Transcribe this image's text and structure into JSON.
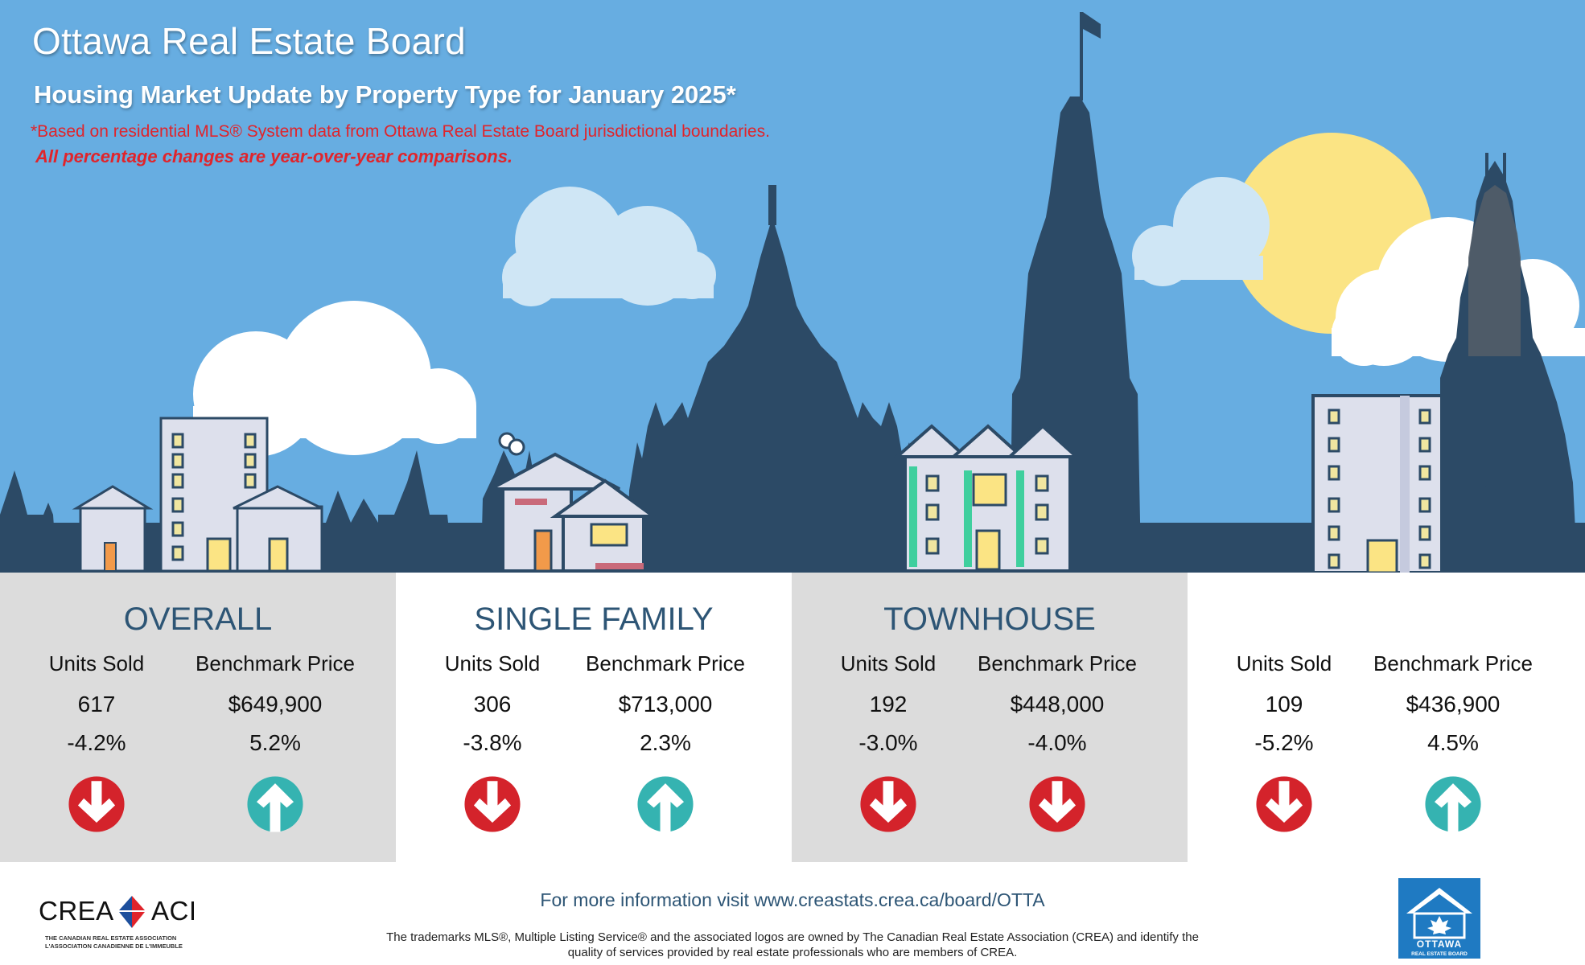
{
  "header": {
    "title": "Ottawa Real Estate Board",
    "subtitle": "Housing Market Update by Property Type for January 2025*",
    "note": "*Based on residential MLS® System data from Ottawa Real Estate Board jurisdictional boundaries.",
    "note2": "All percentage changes are year-over-year comparisons."
  },
  "labels": {
    "units_sold": "Units Sold",
    "benchmark_price": "Benchmark Price"
  },
  "panels": [
    {
      "title": "OVERALL",
      "units": "617",
      "units_change": "-4.2%",
      "units_dir": "down",
      "price": "$649,900",
      "price_change": "5.2%",
      "price_dir": "up"
    },
    {
      "title": "SINGLE FAMILY",
      "units": "306",
      "units_change": "-3.8%",
      "units_dir": "down",
      "price": "$713,000",
      "price_change": "2.3%",
      "price_dir": "up"
    },
    {
      "title": "TOWNHOUSE",
      "units": "192",
      "units_change": "-3.0%",
      "units_dir": "down",
      "price": "$448,000",
      "price_change": "-4.0%",
      "price_dir": "down"
    },
    {
      "title": "",
      "units": "109",
      "units_change": "-5.2%",
      "units_dir": "down",
      "price": "$436,900",
      "price_change": "4.5%",
      "price_dir": "up"
    }
  ],
  "footer": {
    "link_text": "For more information visit www.creastats.crea.ca/board/OTTA",
    "legal_line1": "The trademarks MLS®, Multiple Listing Service® and the associated logos are owned by The Canadian Real Estate Association (CREA) and identify the",
    "legal_line2": "quality of services provided by real estate professionals who are members of CREA.",
    "crea_logo": {
      "left": "CREA",
      "right": "ACI",
      "tagline1": "THE CANADIAN REAL ESTATE ASSOCIATION",
      "tagline2": "L'ASSOCIATION CANADIENNE DE L'IMMEUBLE"
    },
    "ottawa_logo": {
      "name": "OTTAWA",
      "sub": "REAL ESTATE BOARD"
    }
  },
  "colors": {
    "sky": "#67ade1",
    "silhouette": "#2c4a66",
    "panel_grey": "#dcdcdc",
    "down_arrow": "#d4232b",
    "up_arrow": "#35b3b1",
    "title_blue": "#2d5575",
    "note_red": "#e0242b",
    "sun": "#fbe484",
    "cloud": "#ffffff",
    "cloud_light": "#cfe6f5"
  },
  "icons": {
    "down": "down-arrow-icon",
    "up": "up-arrow-icon"
  }
}
